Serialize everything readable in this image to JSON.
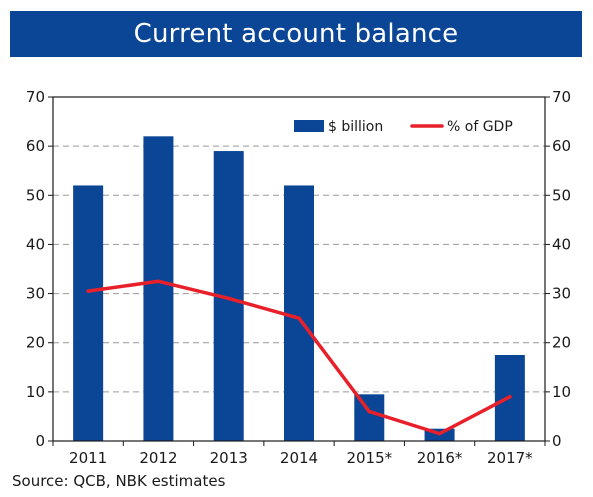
{
  "chart_data": {
    "type": "bar",
    "title": "Current account balance",
    "categories": [
      "2011",
      "2012",
      "2013",
      "2014",
      "2015*",
      "2016*",
      "2017*"
    ],
    "series": [
      {
        "name": "$ billion",
        "type": "bar",
        "color": "#0a4596",
        "values": [
          52,
          62,
          59,
          52,
          9.5,
          2.5,
          17.5
        ]
      },
      {
        "name": "% of GDP",
        "type": "line",
        "color": "#e8202a",
        "values": [
          30.5,
          32.5,
          29,
          25,
          6,
          1.5,
          9
        ]
      }
    ],
    "ylim": [
      0,
      70
    ],
    "yticks": [
      0,
      10,
      20,
      30,
      40,
      50,
      60,
      70
    ],
    "y2lim": [
      0,
      70
    ],
    "grid": true,
    "legend": "top-right"
  },
  "source_note": "Source: QCB, NBK estimates"
}
